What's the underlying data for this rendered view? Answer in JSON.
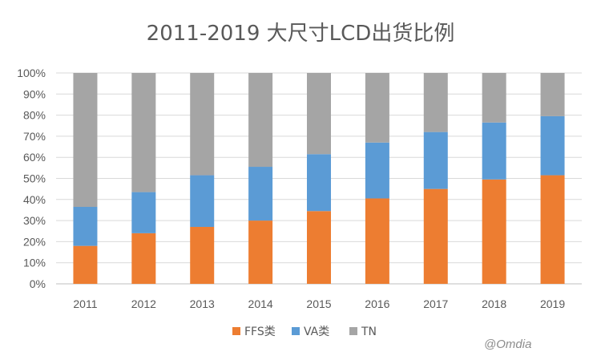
{
  "chart_data": {
    "type": "bar",
    "stacked": true,
    "title": "2011-2019 大尺寸LCD出货比例",
    "xlabel": "",
    "ylabel": "",
    "ylim": [
      0,
      100
    ],
    "y_ticks": [
      "0%",
      "10%",
      "20%",
      "30%",
      "40%",
      "50%",
      "60%",
      "70%",
      "80%",
      "90%",
      "100%"
    ],
    "grid": true,
    "legend_position": "bottom",
    "categories": [
      "2011",
      "2012",
      "2013",
      "2014",
      "2015",
      "2016",
      "2017",
      "2018",
      "2019"
    ],
    "series": [
      {
        "name": "FFS类",
        "color": "#ED7D31",
        "values": [
          18,
          24,
          27,
          30,
          34.5,
          40.5,
          45,
          49.5,
          51.5
        ]
      },
      {
        "name": "VA类",
        "color": "#5B9BD5",
        "values": [
          18.5,
          19.5,
          24.5,
          25.5,
          27,
          26.5,
          27,
          27,
          28
        ]
      },
      {
        "name": "TN",
        "color": "#A5A5A5",
        "values": [
          63.5,
          56.5,
          48.5,
          44.5,
          38.5,
          33,
          28,
          23.5,
          20.5
        ]
      }
    ]
  },
  "watermark": "@Omdia"
}
